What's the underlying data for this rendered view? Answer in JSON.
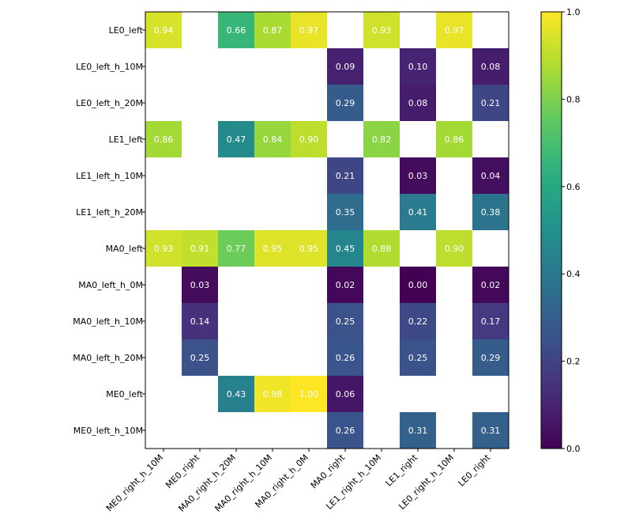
{
  "chart_data": {
    "type": "heatmap",
    "title": "",
    "xlabel": "",
    "ylabel": "",
    "colormap": "viridis",
    "x_categories": [
      "ME0_right_h_10M",
      "ME0_right",
      "MA0_right_h_20M",
      "MA0_right_h_10M",
      "MA0_right_h_0M",
      "MA0_right",
      "LE1_right_h_10M",
      "LE1_right",
      "LE0_right_h_10M",
      "LE0_right"
    ],
    "y_categories": [
      "LE0_left",
      "LE0_left_h_10M",
      "LE0_left_h_20M",
      "LE1_left",
      "LE1_left_h_10M",
      "LE1_left_h_20M",
      "MA0_left",
      "MA0_left_h_0M",
      "MA0_left_h_10M",
      "MA0_left_h_20M",
      "ME0_left",
      "ME0_left_h_10M"
    ],
    "values": [
      [
        0.94,
        null,
        0.66,
        0.87,
        0.97,
        null,
        0.93,
        null,
        0.97,
        null
      ],
      [
        null,
        null,
        null,
        null,
        null,
        0.09,
        null,
        0.1,
        null,
        0.08
      ],
      [
        null,
        null,
        null,
        null,
        null,
        0.29,
        null,
        0.08,
        null,
        0.21
      ],
      [
        0.86,
        null,
        0.47,
        0.84,
        0.9,
        null,
        0.82,
        null,
        0.86,
        null
      ],
      [
        null,
        null,
        null,
        null,
        null,
        0.21,
        null,
        0.03,
        null,
        0.04
      ],
      [
        null,
        null,
        null,
        null,
        null,
        0.35,
        null,
        0.41,
        null,
        0.38
      ],
      [
        0.93,
        0.91,
        0.77,
        0.95,
        0.95,
        0.45,
        0.88,
        null,
        0.9,
        null
      ],
      [
        null,
        0.03,
        null,
        null,
        null,
        0.02,
        null,
        0.0,
        null,
        0.02
      ],
      [
        null,
        0.14,
        null,
        null,
        null,
        0.25,
        null,
        0.22,
        null,
        0.17
      ],
      [
        null,
        0.25,
        null,
        null,
        null,
        0.26,
        null,
        0.25,
        null,
        0.29
      ],
      [
        null,
        null,
        0.43,
        0.98,
        1.0,
        0.06,
        null,
        null,
        null,
        null
      ],
      [
        null,
        null,
        null,
        null,
        null,
        0.26,
        null,
        0.31,
        null,
        0.31
      ]
    ],
    "value_format": "0.00",
    "colorbar": {
      "range": [
        0.0,
        1.0
      ],
      "ticks": [
        0.0,
        0.2,
        0.4,
        0.6,
        0.8,
        1.0
      ],
      "tick_labels": [
        "0.0",
        "0.2",
        "0.4",
        "0.6",
        "0.8",
        "1.0"
      ]
    }
  }
}
